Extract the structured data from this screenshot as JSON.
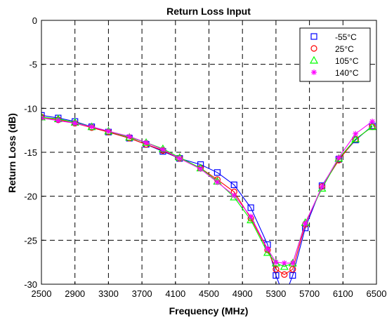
{
  "chart_data": {
    "type": "line",
    "title": "Return Loss Input",
    "xlabel": "Frequency (MHz)",
    "ylabel": "Return Loss (dB)",
    "xlim": [
      2500,
      6500
    ],
    "ylim": [
      -30,
      0
    ],
    "xticks": [
      2500,
      2900,
      3300,
      3700,
      4100,
      4500,
      4900,
      5300,
      5700,
      6100,
      6500
    ],
    "yticks": [
      0,
      -5,
      -10,
      -15,
      -20,
      -25,
      -30
    ],
    "grid": true,
    "grid_style": "dashed",
    "legend_position": "top-right",
    "series": [
      {
        "name": "-55°C",
        "color": "#0000ff",
        "marker": "square",
        "x": [
          2500,
          2700,
          2900,
          3100,
          3300,
          3550,
          3750,
          3950,
          4150,
          4400,
          4600,
          4800,
          5000,
          5200,
          5300,
          5400,
          5500,
          5650,
          5850,
          6050,
          6250,
          6450
        ],
        "y": [
          -10.8,
          -11.1,
          -11.5,
          -12.1,
          -12.7,
          -13.4,
          -14.1,
          -14.9,
          -15.7,
          -16.4,
          -17.3,
          -18.7,
          -21.3,
          -25.5,
          -29.0,
          -31.5,
          -29.0,
          -23.6,
          -18.8,
          -15.8,
          -13.6,
          -12.0
        ]
      },
      {
        "name": "25°C",
        "color": "#ff0000",
        "marker": "circle",
        "x": [
          2500,
          2700,
          2900,
          3100,
          3300,
          3550,
          3750,
          3950,
          4150,
          4400,
          4600,
          4800,
          5000,
          5200,
          5300,
          5400,
          5500,
          5650,
          5850,
          6050,
          6250,
          6450
        ],
        "y": [
          -11.0,
          -11.3,
          -11.7,
          -12.2,
          -12.7,
          -13.4,
          -14.1,
          -14.8,
          -15.7,
          -16.8,
          -18.1,
          -19.5,
          -22.5,
          -26.1,
          -28.3,
          -28.9,
          -28.3,
          -23.2,
          -18.9,
          -15.9,
          -13.5,
          -12.1
        ]
      },
      {
        "name": "105°C",
        "color": "#00ff00",
        "marker": "triangle",
        "x": [
          2500,
          2700,
          2900,
          3100,
          3300,
          3550,
          3750,
          3950,
          4150,
          4400,
          4600,
          4800,
          5000,
          5200,
          5300,
          5400,
          5500,
          5650,
          5850,
          6050,
          6250,
          6450
        ],
        "y": [
          -11.0,
          -11.2,
          -11.6,
          -12.1,
          -12.6,
          -13.3,
          -13.9,
          -14.6,
          -15.6,
          -16.8,
          -18.3,
          -20.1,
          -22.7,
          -26.4,
          -27.6,
          -28.0,
          -27.6,
          -23.0,
          -19.1,
          -15.7,
          -13.5,
          -12.1
        ]
      },
      {
        "name": "140°C",
        "color": "#ff00ff",
        "marker": "asterisk",
        "x": [
          2500,
          2700,
          2900,
          3100,
          3300,
          3550,
          3750,
          3950,
          4150,
          4400,
          4600,
          4800,
          5000,
          5200,
          5300,
          5400,
          5500,
          5650,
          5850,
          6050,
          6250,
          6450
        ],
        "y": [
          -11.1,
          -11.4,
          -11.7,
          -12.1,
          -12.6,
          -13.2,
          -13.9,
          -14.7,
          -15.7,
          -16.9,
          -18.4,
          -19.9,
          -22.3,
          -26.0,
          -27.5,
          -27.6,
          -27.6,
          -23.1,
          -18.9,
          -15.6,
          -12.9,
          -11.5
        ]
      }
    ]
  }
}
